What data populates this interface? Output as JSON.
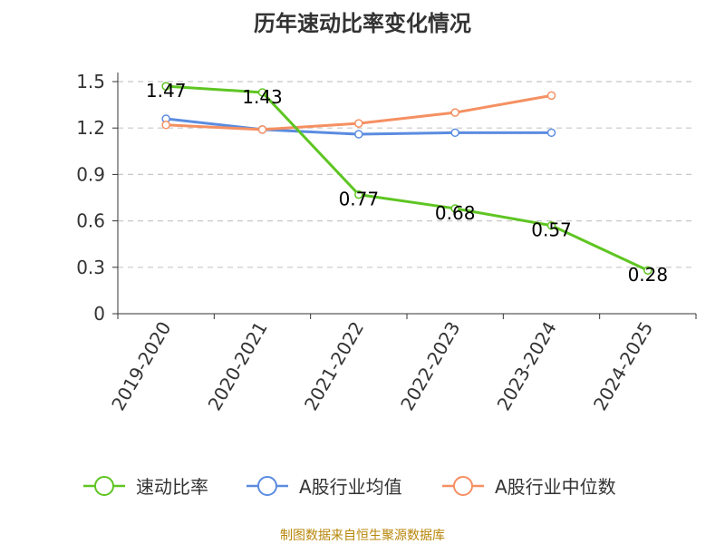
{
  "chart_data": {
    "type": "line",
    "title": "历年速动比率变化情况",
    "categories": [
      "2019-2020",
      "2020-2021",
      "2021-2022",
      "2022-2023",
      "2023-2024",
      "2024-2025"
    ],
    "ylim": [
      0,
      1.5
    ],
    "yticks": [
      "0",
      "0.3",
      "0.6",
      "0.9",
      "1.2",
      "1.5"
    ],
    "ytick_values": [
      0,
      0.3,
      0.6,
      0.9,
      1.2,
      1.5
    ],
    "series": [
      {
        "name": "速动比率",
        "color": "#5ec522",
        "values": [
          1.47,
          1.43,
          0.77,
          0.68,
          0.57,
          0.28
        ],
        "labels": [
          "1.47",
          "1.43",
          "0.77",
          "0.68",
          "0.57",
          "0.28"
        ]
      },
      {
        "name": "A股行业均值",
        "color": "#5b8ce0",
        "values": [
          1.26,
          1.19,
          1.16,
          1.17,
          1.17,
          null
        ]
      },
      {
        "name": "A股行业中位数",
        "color": "#f59062",
        "values": [
          1.22,
          1.19,
          1.23,
          1.3,
          1.41,
          null
        ]
      }
    ],
    "source": "制图数据来自恒生聚源数据库"
  }
}
